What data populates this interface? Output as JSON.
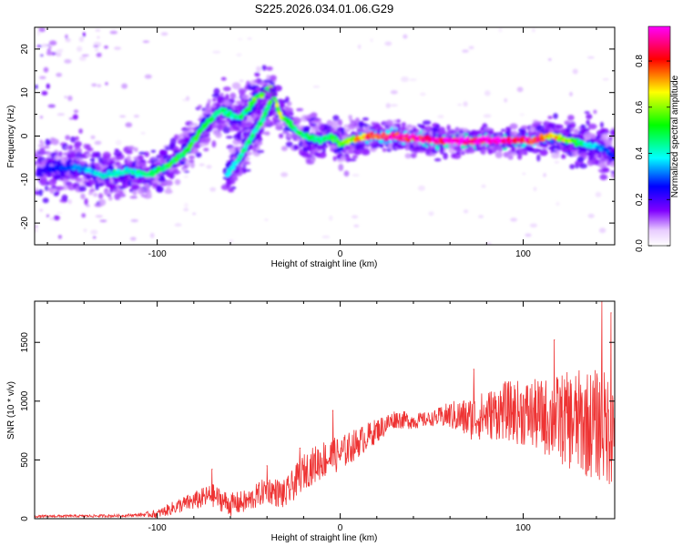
{
  "title": "S225.2026.034.01.06.G29",
  "chart_data": [
    {
      "type": "heatmap",
      "name": "spectrogram",
      "xlabel": "Height of straight line (km)",
      "ylabel": "Frequency (Hz)",
      "xlim": [
        -167,
        150
      ],
      "ylim": [
        -25,
        25
      ],
      "xticks": [
        -100,
        0,
        100
      ],
      "yticks": [
        -20,
        -10,
        0,
        10,
        20
      ],
      "colorbar": {
        "label": "Normalized spectral amplitude",
        "range": [
          0,
          0.95
        ],
        "ticks": [
          0.0,
          0.2,
          0.4,
          0.6,
          0.8
        ],
        "colors": [
          "#ffffff",
          "#8000ff",
          "#0000ff",
          "#00ffff",
          "#00ff00",
          "#ffff00",
          "#ff0000",
          "#ff00ff"
        ]
      },
      "ridge": {
        "x": [
          -165,
          -145,
          -130,
          -115,
          -105,
          -95,
          -85,
          -75,
          -65,
          -55,
          -45,
          -38,
          -33,
          -28,
          -20,
          -10,
          -5,
          0,
          5,
          15,
          30,
          50,
          70,
          90,
          105,
          115,
          125,
          135,
          145,
          150
        ],
        "y": [
          -8,
          -7,
          -9,
          -8,
          -9,
          -7,
          -4,
          2,
          6,
          4,
          9,
          11,
          5,
          3,
          0,
          -1,
          0,
          -2,
          -1,
          0,
          0,
          -1,
          -1,
          -1,
          -1,
          0,
          -1,
          -2,
          -3,
          -5
        ],
        "amplitude": [
          0.2,
          0.3,
          0.4,
          0.4,
          0.45,
          0.5,
          0.5,
          0.5,
          0.45,
          0.45,
          0.55,
          0.55,
          0.6,
          0.5,
          0.45,
          0.45,
          0.5,
          0.55,
          0.6,
          0.8,
          0.85,
          0.9,
          0.95,
          0.95,
          0.85,
          0.7,
          0.6,
          0.4,
          0.3,
          0.25
        ]
      },
      "secondary_track": {
        "x": [
          -62,
          -55,
          -48,
          -42,
          -38
        ],
        "y": [
          -9,
          -5,
          0,
          4,
          8
        ],
        "amplitude": [
          0.35,
          0.4,
          0.45,
          0.45,
          0.5
        ]
      }
    },
    {
      "type": "line",
      "name": "snr",
      "color": "#ee3333",
      "xlabel": "Height of straight line (km)",
      "ylabel": "SNR (10 * v/v)",
      "xlim": [
        -167,
        150
      ],
      "ylim": [
        0,
        1850
      ],
      "xticks": [
        -100,
        0,
        100
      ],
      "yticks": [
        0,
        500,
        1000,
        1500
      ],
      "envelope": {
        "x": [
          -167,
          -120,
          -100,
          -90,
          -80,
          -70,
          -60,
          -50,
          -40,
          -30,
          -20,
          -10,
          0,
          10,
          20,
          30,
          40,
          50,
          60,
          70,
          80,
          90,
          100,
          110,
          120,
          130,
          140,
          150
        ],
        "y": [
          20,
          25,
          40,
          100,
          150,
          200,
          120,
          150,
          250,
          200,
          400,
          500,
          550,
          650,
          750,
          850,
          830,
          850,
          880,
          850,
          880,
          920,
          900,
          870,
          850,
          820,
          800,
          750
        ]
      },
      "noise_amplitude": {
        "x": [
          -167,
          -110,
          -90,
          -70,
          -50,
          -30,
          -10,
          10,
          30,
          50,
          70,
          90,
          110,
          130,
          150
        ],
        "y": [
          10,
          12,
          60,
          100,
          100,
          130,
          170,
          130,
          80,
          60,
          180,
          250,
          320,
          450,
          500
        ]
      },
      "peaks": [
        {
          "x": -70,
          "y": 420
        },
        {
          "x": -40,
          "y": 450
        },
        {
          "x": -22,
          "y": 600
        },
        {
          "x": -4,
          "y": 920
        },
        {
          "x": 73,
          "y": 1270
        },
        {
          "x": 117,
          "y": 1520
        },
        {
          "x": 143,
          "y": 1850
        },
        {
          "x": 148,
          "y": 1750
        }
      ]
    }
  ]
}
